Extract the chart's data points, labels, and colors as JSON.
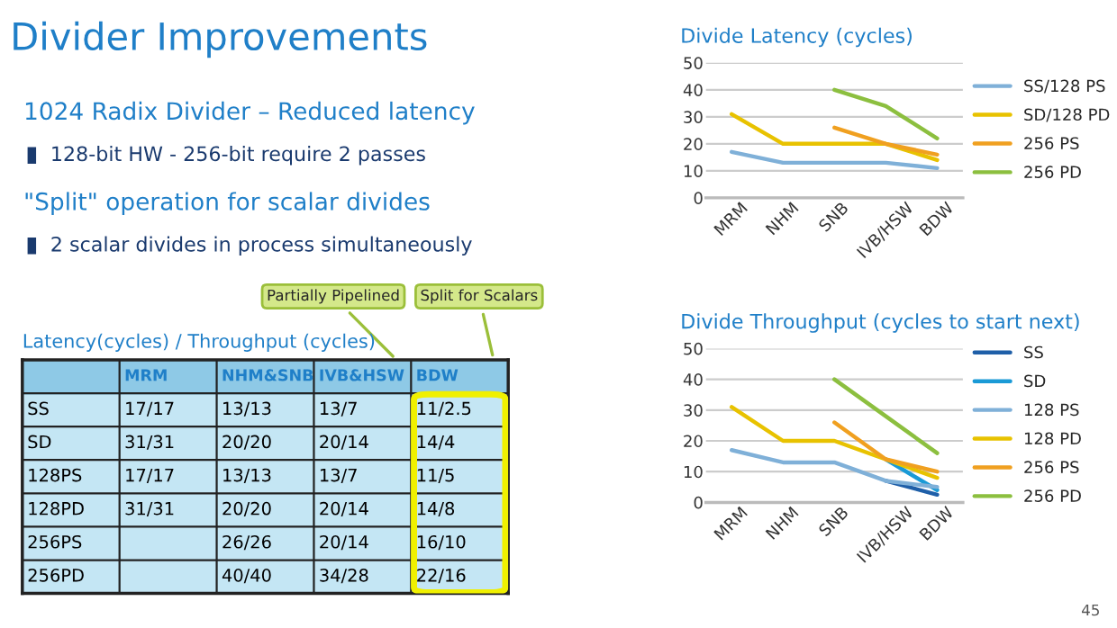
{
  "chart_data": [
    {
      "type": "other",
      "title": "Divider Improvements",
      "annotations": [
        "1024 Radix Divider – Reduced latency",
        "128-bit HW - 256-bit require 2 passes",
        "\"Split\" operation for scalar divides",
        "2 scalar divides in process simultaneously",
        "45"
      ]
    },
    {
      "type": "heatmap",
      "title": "Latency(cycles) / Throughput (cycles)",
      "categories": [
        "MRM",
        "NHM&SNB",
        "IVB&HSW",
        "BDW"
      ],
      "y_categories": [
        "SS",
        "SD",
        "128PS",
        "128PD",
        "256PS",
        "256PD"
      ],
      "color": "#c4e6f4",
      "grid": true,
      "cells": [
        [
          null,
          null,
          null,
          null
        ],
        [
          null,
          null,
          null,
          null
        ],
        [
          null,
          null,
          null,
          null
        ],
        [
          null,
          null,
          null,
          null
        ],
        [
          null,
          null,
          null,
          null
        ],
        [
          null,
          null,
          null,
          null
        ]
      ],
      "cell_labels": [
        [
          "17/17",
          "13/13",
          "13/7",
          "11/2.5"
        ],
        [
          "31/31",
          "20/20",
          "20/14",
          "14/4"
        ],
        [
          "17/17",
          "13/13",
          "13/7",
          "11/5"
        ],
        [
          "31/31",
          "20/20",
          "20/14",
          "14/8"
        ],
        [
          null,
          "26/26",
          "20/14",
          "16/10"
        ],
        [
          null,
          "40/40",
          "34/28",
          "22/16"
        ]
      ],
      "annotations": [
        "Partially Pipelined",
        "Split for Scalars"
      ]
    },
    {
      "type": "line",
      "title": "Divide Latency (cycles)",
      "categories": [
        "MRM",
        "NHM",
        "SNB",
        "IVB/HSW",
        "BDW"
      ],
      "ylim": [
        0,
        50
      ],
      "yticks": [
        0,
        10,
        20,
        30,
        40,
        50
      ],
      "grid": "y",
      "legend": "right",
      "series": [
        {
          "name": "SS/128 PS",
          "color": "#7fb0d8",
          "values": [
            17,
            13,
            13,
            13,
            11
          ]
        },
        {
          "name": "SD/128 PD",
          "color": "#e8c200",
          "values": [
            31,
            20,
            20,
            20,
            14
          ]
        },
        {
          "name": "256 PS",
          "color": "#f0a020",
          "values": [
            null,
            null,
            26,
            20,
            16
          ]
        },
        {
          "name": "256 PD",
          "color": "#8cbf3f",
          "values": [
            null,
            null,
            40,
            34,
            22
          ]
        }
      ]
    },
    {
      "type": "line",
      "title": "Divide Throughput (cycles to start next)",
      "categories": [
        "MRM",
        "NHM",
        "SNB",
        "IVB/HSW",
        "BDW"
      ],
      "ylim": [
        0,
        50
      ],
      "yticks": [
        0,
        10,
        20,
        30,
        40,
        50
      ],
      "grid": "y",
      "legend": "right",
      "series": [
        {
          "name": "SS",
          "color": "#1f5fa8",
          "values": [
            null,
            null,
            null,
            7,
            2.5
          ]
        },
        {
          "name": "SD",
          "color": "#1a9ad6",
          "values": [
            null,
            null,
            null,
            14,
            4
          ]
        },
        {
          "name": "128 PS",
          "color": "#7fb0d8",
          "values": [
            17,
            13,
            13,
            7,
            5
          ]
        },
        {
          "name": "128 PD",
          "color": "#e8c200",
          "values": [
            31,
            20,
            20,
            14,
            8
          ]
        },
        {
          "name": "256 PS",
          "color": "#f0a020",
          "values": [
            null,
            null,
            26,
            14,
            10
          ]
        },
        {
          "name": "256 PD",
          "color": "#8cbf3f",
          "values": [
            null,
            null,
            40,
            28,
            16
          ]
        }
      ]
    }
  ]
}
